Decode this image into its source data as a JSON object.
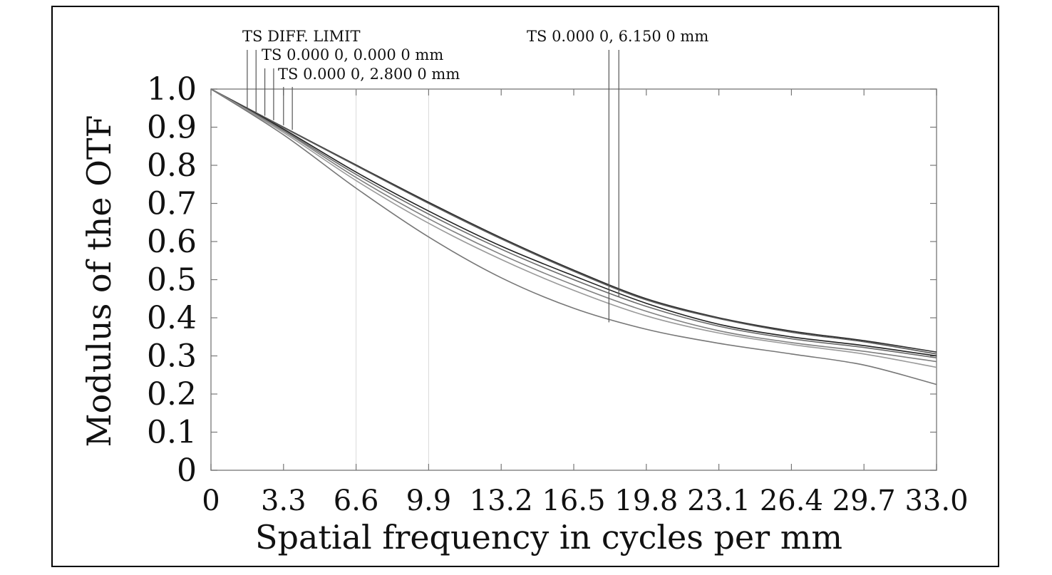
{
  "chart_data": {
    "type": "line",
    "title": "",
    "xlabel": "Spatial frequency in cycles per mm",
    "ylabel": "Modulus of the OTF",
    "xlim": [
      0,
      33.0
    ],
    "ylim": [
      0,
      1.0
    ],
    "x_ticks": [
      "0",
      "3.3",
      "6.6",
      "9.9",
      "13.2",
      "16.5",
      "19.8",
      "23.1",
      "26.4",
      "29.7",
      "33.0"
    ],
    "y_ticks": [
      "0",
      "0.1",
      "0.2",
      "0.3",
      "0.4",
      "0.5",
      "0.6",
      "0.7",
      "0.8",
      "0.9",
      "1.0"
    ],
    "grid": "vertical",
    "legend_labels": {
      "diff": "TS DIFF. LIMIT",
      "f0": "TS 0.000 0, 0.000 0 mm",
      "f1": "TS 0.000 0, 2.800 0 mm",
      "f2": "TS 0.000 0, 6.150 0 mm"
    },
    "x": [
      0,
      3.3,
      6.6,
      9.9,
      13.2,
      16.5,
      19.8,
      23.1,
      26.4,
      29.7,
      33.0
    ],
    "series": [
      {
        "name": "TS DIFF. LIMIT (T)",
        "values": [
          1.0,
          0.9,
          0.801,
          0.703,
          0.61,
          0.525,
          0.45,
          0.4,
          0.365,
          0.34,
          0.31
        ],
        "color": "#2a2a2a"
      },
      {
        "name": "TS DIFF. LIMIT (S)",
        "values": [
          1.0,
          0.899,
          0.799,
          0.7,
          0.607,
          0.522,
          0.447,
          0.398,
          0.362,
          0.337,
          0.305
        ],
        "color": "#5a5a5a"
      },
      {
        "name": "TS 0.000 0, 0.000 0 mm (T)",
        "values": [
          1.0,
          0.895,
          0.782,
          0.68,
          0.588,
          0.51,
          0.438,
          0.383,
          0.35,
          0.327,
          0.3
        ],
        "color": "#1f1f1f"
      },
      {
        "name": "TS 0.000 0, 0.000 0 mm (S)",
        "values": [
          1.0,
          0.892,
          0.776,
          0.672,
          0.58,
          0.5,
          0.43,
          0.378,
          0.345,
          0.322,
          0.295
        ],
        "color": "#6a6a6a"
      },
      {
        "name": "TS 0.000 0, 2.800 0 mm (T)",
        "values": [
          1.0,
          0.89,
          0.768,
          0.66,
          0.566,
          0.486,
          0.417,
          0.366,
          0.335,
          0.312,
          0.285
        ],
        "color": "#808080"
      },
      {
        "name": "TS 0.000 0, 2.800 0 mm (S)",
        "values": [
          1.0,
          0.886,
          0.76,
          0.648,
          0.553,
          0.472,
          0.405,
          0.36,
          0.33,
          0.305,
          0.27
        ],
        "color": "#9a9a9a"
      },
      {
        "name": "TS 0.000 0, 6.150 0 mm (T)",
        "values": [
          1.0,
          0.88,
          0.74,
          0.612,
          0.505,
          0.425,
          0.37,
          0.333,
          0.305,
          0.276,
          0.225
        ],
        "color": "#777777"
      }
    ],
    "legend_markers": [
      {
        "label": "diff",
        "x": 1.65,
        "y": 0.948
      },
      {
        "label": "diff",
        "x": 2.05,
        "y": 0.94
      },
      {
        "label": "f0",
        "x": 2.45,
        "y": 0.93
      },
      {
        "label": "f0",
        "x": 2.85,
        "y": 0.918
      },
      {
        "label": "f1",
        "x": 3.3,
        "y": 0.905
      },
      {
        "label": "f1",
        "x": 3.7,
        "y": 0.893
      },
      {
        "label": "f2",
        "x": 18.1,
        "y": 0.388
      },
      {
        "label": "f2",
        "x": 18.55,
        "y": 0.455
      }
    ]
  }
}
